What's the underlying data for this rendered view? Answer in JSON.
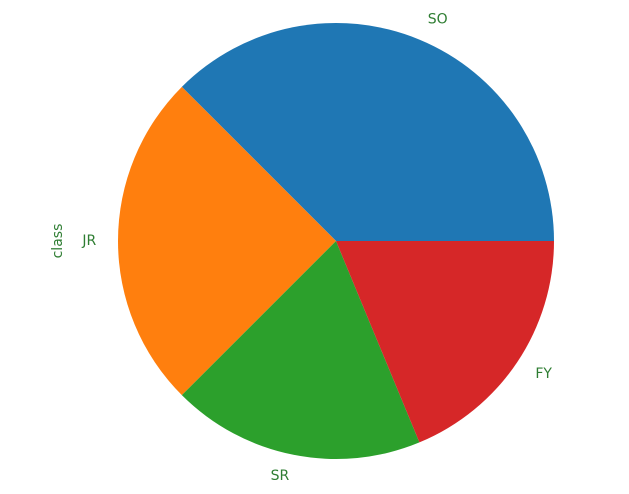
{
  "label_color": "#2e7d32",
  "chart_data": {
    "type": "pie",
    "ylabel": "class",
    "start_angle_deg": 0,
    "direction": "counterclockwise",
    "legend": false,
    "slices": [
      {
        "label": "SO",
        "value": 37.5,
        "color": "#1f77b4"
      },
      {
        "label": "JR",
        "value": 25.0,
        "color": "#ff7f0e"
      },
      {
        "label": "SR",
        "value": 18.75,
        "color": "#2ca02c"
      },
      {
        "label": "FY",
        "value": 18.75,
        "color": "#d62728"
      }
    ]
  }
}
